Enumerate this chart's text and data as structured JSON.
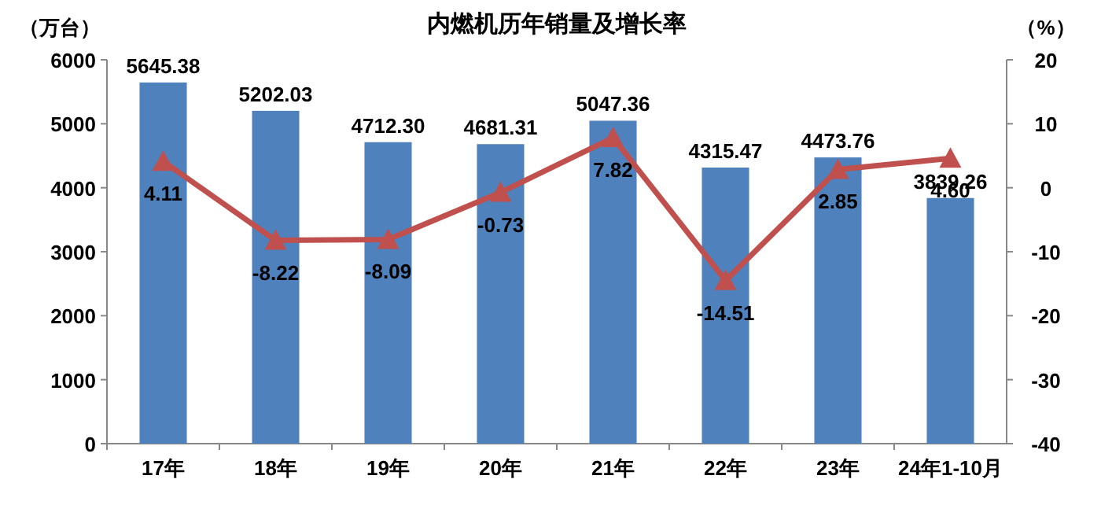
{
  "chart_data": {
    "type": "bar",
    "title": "内燃机历年销量及增长率",
    "ylabel": "（万台）",
    "y2label": "（%）",
    "categories": [
      "17年",
      "18年",
      "19年",
      "20年",
      "21年",
      "22年",
      "23年",
      "24年1-10月"
    ],
    "series": [
      {
        "color": "#4f81bd",
        "values": [
          5645.38,
          5202.03,
          4712.3,
          4681.31,
          5047.36,
          4315.47,
          4473.76,
          3839.26
        ],
        "value_labels": [
          "5645.38",
          "5202.03",
          "4712.30",
          "4681.31",
          "5047.36",
          "4315.47",
          "4473.76",
          "3839.26"
        ]
      },
      {
        "type": "line",
        "axis": "y2",
        "color": "#c0504d",
        "marker": "triangle",
        "line_style": "solid",
        "values": [
          4.11,
          -8.22,
          -8.09,
          -0.73,
          7.82,
          -14.51,
          2.85,
          4.6
        ],
        "value_labels": [
          "4.11",
          "-8.22",
          "-8.09",
          "-0.73",
          "7.82",
          "-14.51",
          "2.85",
          "4.60"
        ]
      }
    ],
    "ylim": [
      0,
      6000
    ],
    "yticks": [
      0,
      1000,
      2000,
      3000,
      4000,
      5000,
      6000
    ],
    "y2lim": [
      -40,
      20
    ],
    "y2ticks": [
      -40,
      -30,
      -20,
      -10,
      0,
      10,
      20
    ],
    "grid": false
  }
}
